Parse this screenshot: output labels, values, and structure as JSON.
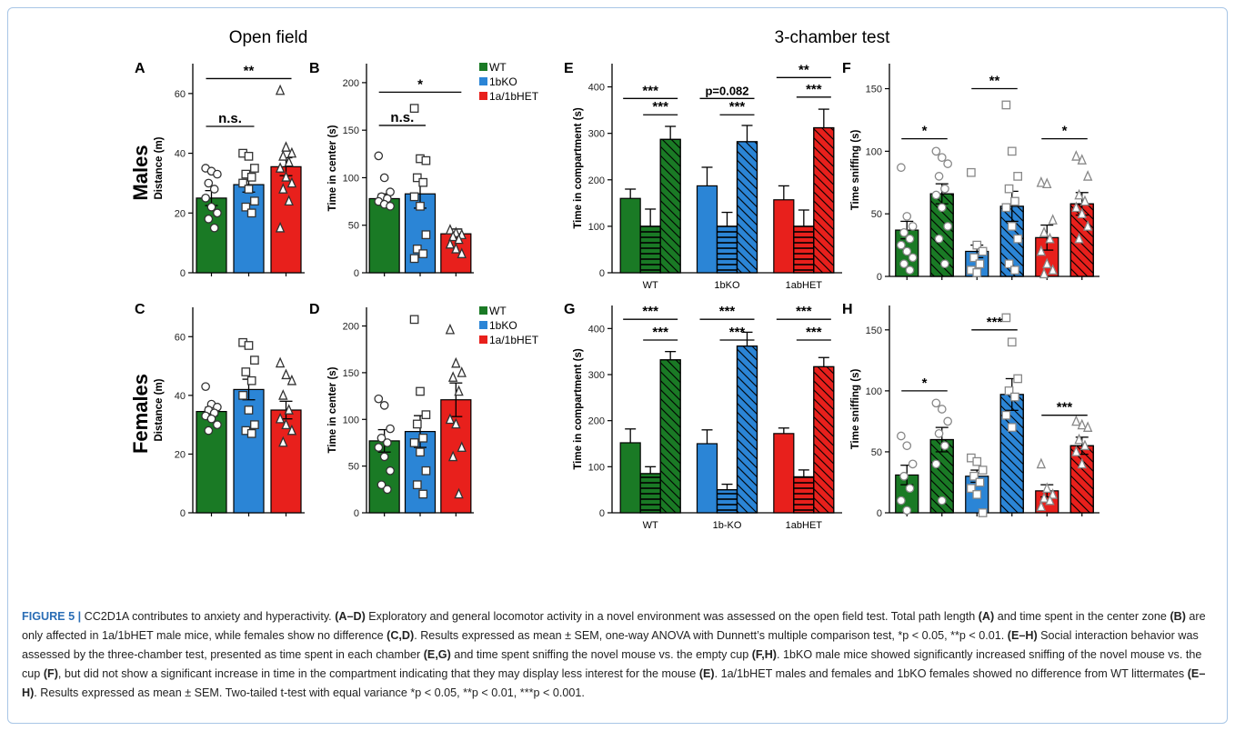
{
  "figure": {
    "group_titles": [
      "Open field",
      "3-chamber test"
    ],
    "row_labels": [
      "Males",
      "Females"
    ],
    "legend": [
      {
        "label": "WT",
        "color": "#1a7a25"
      },
      {
        "label": "1bKO",
        "color": "#2b85d6"
      },
      {
        "label": "1a/1bHET",
        "color": "#e8201c"
      }
    ],
    "colors": {
      "WT": "#1a7a25",
      "1bKO": "#2b85d6",
      "1a/1bHET": "#e8201c"
    }
  },
  "caption": {
    "label": "FIGURE 5 |",
    "parts": [
      {
        "t": " CC2D1A contributes to anxiety and hyperactivity. "
      },
      {
        "t": "(A–D)",
        "b": true
      },
      {
        "t": " Exploratory and general locomotor activity in a novel environment was assessed on the open field test. Total path length "
      },
      {
        "t": "(A)",
        "b": true
      },
      {
        "t": " and time spent in the center zone "
      },
      {
        "t": "(B)",
        "b": true
      },
      {
        "t": " are only affected in 1a/1bHET male mice, while females show no difference "
      },
      {
        "t": "(C,D)",
        "b": true
      },
      {
        "t": ". Results expressed as mean ± SEM, one-way ANOVA with Dunnett’s multiple comparison test, *p < 0.05, **p < 0.01. "
      },
      {
        "t": "(E–H)",
        "b": true
      },
      {
        "t": " Social interaction behavior was assessed by the three-chamber test, presented as time spent in each chamber "
      },
      {
        "t": "(E,G)",
        "b": true
      },
      {
        "t": " and time spent sniffing the novel mouse vs. the empty cup "
      },
      {
        "t": "(F,H)",
        "b": true
      },
      {
        "t": ". 1bKO male mice showed significantly increased sniffing of the novel mouse vs. the cup "
      },
      {
        "t": "(F)",
        "b": true
      },
      {
        "t": ", but did not show a significant increase in time in the compartment indicating that they may display less interest for the mouse "
      },
      {
        "t": "(E)",
        "b": true
      },
      {
        "t": ". 1a/1bHET males and females and 1bKO females showed no difference from WT littermates "
      },
      {
        "t": "(E–H)",
        "b": true
      },
      {
        "t": ". Results expressed as mean ± SEM. Two-tailed t-test with equal variance *p < 0.05, **p < 0.01, ***p < 0.001."
      }
    ]
  },
  "chart_data": [
    {
      "panel": "A",
      "type": "bar",
      "ylabel": "Distance (m)",
      "ylim": [
        0,
        70
      ],
      "yticks": [
        0,
        20,
        40,
        60
      ],
      "categories": [
        "WT",
        "1bKO",
        "1a/1bHET"
      ],
      "values": [
        25,
        29.5,
        35.5
      ],
      "sem": [
        2.5,
        2.5,
        3
      ],
      "points": [
        [
          35,
          34,
          33,
          30,
          28,
          25,
          22,
          20,
          18,
          15
        ],
        [
          40,
          39,
          35,
          33,
          32,
          30,
          28,
          24,
          22,
          20
        ],
        [
          61,
          42,
          40,
          39,
          37,
          35,
          32,
          30,
          28,
          24,
          15
        ]
      ],
      "markers": [
        "circle",
        "square",
        "triangle"
      ],
      "sig": [
        {
          "a": 0,
          "b": 1,
          "label": "n.s.",
          "y": 49
        },
        {
          "a": 0,
          "b": 2,
          "label": "**",
          "y": 65
        }
      ]
    },
    {
      "panel": "B",
      "type": "bar",
      "ylabel": "Time in center (s)",
      "ylim": [
        0,
        220
      ],
      "yticks": [
        0,
        50,
        100,
        150,
        200
      ],
      "categories": [
        "WT",
        "1bKO",
        "1a/1bHET"
      ],
      "values": [
        78,
        83,
        41
      ],
      "sem": [
        5,
        15,
        5
      ],
      "points": [
        [
          123,
          100,
          85,
          80,
          78,
          75,
          72,
          70
        ],
        [
          173,
          120,
          118,
          100,
          95,
          80,
          70,
          40,
          25,
          20,
          15
        ],
        [
          45,
          42,
          40,
          38,
          35,
          30,
          25,
          20
        ]
      ],
      "markers": [
        "circle",
        "square",
        "triangle"
      ],
      "sig": [
        {
          "a": 0,
          "b": 1,
          "label": "n.s.",
          "y": 155
        },
        {
          "a": 0,
          "b": 2,
          "label": "*",
          "y": 190
        }
      ],
      "legend": true
    },
    {
      "panel": "C",
      "type": "bar",
      "ylabel": "Distance (m)",
      "ylim": [
        0,
        70
      ],
      "yticks": [
        0,
        20,
        40,
        60
      ],
      "categories": [
        "WT",
        "1bKO",
        "1a/1bHET"
      ],
      "values": [
        34.5,
        42,
        35
      ],
      "sem": [
        1.5,
        3.5,
        3
      ],
      "points": [
        [
          43,
          37,
          36,
          35,
          34,
          33,
          32,
          30,
          28
        ],
        [
          58,
          57,
          52,
          48,
          45,
          40,
          35,
          30,
          28,
          27
        ],
        [
          51,
          47,
          45,
          40,
          35,
          32,
          30,
          28,
          24
        ]
      ],
      "markers": [
        "circle",
        "square",
        "triangle"
      ],
      "sig": []
    },
    {
      "panel": "D",
      "type": "bar",
      "ylabel": "Time in center (s)",
      "ylim": [
        0,
        220
      ],
      "yticks": [
        0,
        50,
        100,
        150,
        200
      ],
      "categories": [
        "WT",
        "1bKO",
        "1a/1bHET"
      ],
      "values": [
        77,
        87,
        121
      ],
      "sem": [
        12,
        17,
        18
      ],
      "points": [
        [
          122,
          115,
          90,
          80,
          75,
          70,
          60,
          45,
          30,
          25
        ],
        [
          207,
          130,
          105,
          95,
          80,
          75,
          65,
          45,
          30,
          20
        ],
        [
          196,
          160,
          150,
          145,
          130,
          100,
          95,
          70,
          60,
          20
        ]
      ],
      "markers": [
        "circle",
        "square",
        "triangle"
      ],
      "sig": [],
      "legend": true
    },
    {
      "panel": "E",
      "type": "bar",
      "ylabel": "Time in compartment (s)",
      "ylim": [
        0,
        450
      ],
      "yticks": [
        0,
        100,
        200,
        300,
        400
      ],
      "groups": [
        "WT",
        "1bKO",
        "1abHET"
      ],
      "series": [
        {
          "name": "",
          "values": [
            160,
            187,
            157
          ],
          "sem": [
            20,
            40,
            30
          ]
        },
        {
          "name": "",
          "values": [
            100,
            100,
            100
          ],
          "sem": [
            37,
            30,
            35
          ]
        },
        {
          "name": "",
          "values": [
            287,
            282,
            312
          ],
          "sem": [
            28,
            35,
            40
          ]
        }
      ],
      "sig": [
        {
          "g": 0,
          "a": 0,
          "b": 2,
          "label": "***",
          "y": 375
        },
        {
          "g": 0,
          "a": 1,
          "b": 2,
          "label": "***",
          "y": 340
        },
        {
          "g": 1,
          "a": 0,
          "b": 2,
          "label": "p=0.082",
          "y": 375
        },
        {
          "g": 1,
          "a": 1,
          "b": 2,
          "label": "***",
          "y": 340
        },
        {
          "g": 2,
          "a": 0,
          "b": 2,
          "label": "**",
          "y": 420
        },
        {
          "g": 2,
          "a": 1,
          "b": 2,
          "label": "***",
          "y": 378
        }
      ]
    },
    {
      "panel": "F",
      "type": "bar",
      "ylabel": "Time sniffing (s)",
      "ylim": [
        0,
        170
      ],
      "yticks": [
        0,
        50,
        100,
        150
      ],
      "categories": [
        "WT",
        "WT",
        "1bKO",
        "1bKO",
        "1a/1bHET",
        "1a/1bHET"
      ],
      "hatched": [
        false,
        true,
        false,
        true,
        false,
        true
      ],
      "values": [
        37,
        66,
        20,
        56,
        31,
        58
      ],
      "sem": [
        7,
        8,
        5,
        12,
        10,
        9
      ],
      "points": [
        [
          87,
          48,
          40,
          35,
          30,
          25,
          20,
          15,
          10,
          5
        ],
        [
          100,
          95,
          90,
          80,
          70,
          65,
          55,
          40,
          30,
          10
        ],
        [
          83,
          25,
          20,
          15,
          10,
          5,
          3
        ],
        [
          137,
          100,
          80,
          70,
          60,
          55,
          40,
          30,
          10,
          5
        ],
        [
          75,
          74,
          45,
          35,
          30,
          20,
          10,
          5,
          2
        ],
        [
          96,
          93,
          80,
          65,
          60,
          55,
          50,
          40,
          30
        ]
      ],
      "markers": [
        "circle",
        "circle",
        "square",
        "square",
        "triangle",
        "triangle"
      ],
      "sig": [
        {
          "a": 0,
          "b": 1,
          "label": "*",
          "y": 110
        },
        {
          "a": 2,
          "b": 3,
          "label": "**",
          "y": 150
        },
        {
          "a": 4,
          "b": 5,
          "label": "*",
          "y": 110
        }
      ]
    },
    {
      "panel": "G",
      "type": "bar",
      "ylabel": "Time in compartment (s)",
      "ylim": [
        0,
        450
      ],
      "yticks": [
        0,
        100,
        200,
        300,
        400
      ],
      "groups": [
        "WT",
        "1b-KO",
        "1abHET"
      ],
      "series": [
        {
          "name": "",
          "values": [
            152,
            150,
            172
          ],
          "sem": [
            30,
            30,
            12
          ]
        },
        {
          "name": "",
          "values": [
            85,
            50,
            78
          ],
          "sem": [
            15,
            12,
            15
          ]
        },
        {
          "name": "",
          "values": [
            332,
            362,
            317
          ],
          "sem": [
            18,
            30,
            20
          ]
        }
      ],
      "sig": [
        {
          "g": 0,
          "a": 0,
          "b": 2,
          "label": "***",
          "y": 420
        },
        {
          "g": 0,
          "a": 1,
          "b": 2,
          "label": "***",
          "y": 375
        },
        {
          "g": 1,
          "a": 0,
          "b": 2,
          "label": "***",
          "y": 420
        },
        {
          "g": 1,
          "a": 1,
          "b": 2,
          "label": "***",
          "y": 375
        },
        {
          "g": 2,
          "a": 0,
          "b": 2,
          "label": "***",
          "y": 420
        },
        {
          "g": 2,
          "a": 1,
          "b": 2,
          "label": "***",
          "y": 375
        }
      ]
    },
    {
      "panel": "H",
      "type": "bar",
      "ylabel": "Time sniffing (s)",
      "ylim": [
        0,
        170
      ],
      "yticks": [
        0,
        50,
        100,
        150
      ],
      "categories": [
        "WT",
        "WT",
        "1bKO",
        "1bKO",
        "1a/1bHET",
        "1a/1bHET"
      ],
      "hatched": [
        false,
        true,
        false,
        true,
        false,
        true
      ],
      "values": [
        31,
        60,
        30,
        97,
        18,
        55
      ],
      "sem": [
        8,
        10,
        5,
        13,
        5,
        7
      ],
      "points": [
        [
          63,
          55,
          40,
          30,
          20,
          10,
          2
        ],
        [
          90,
          85,
          75,
          65,
          55,
          40,
          10
        ],
        [
          45,
          42,
          35,
          30,
          25,
          20,
          15,
          0
        ],
        [
          160,
          140,
          110,
          100,
          95,
          80,
          70
        ],
        [
          40,
          20,
          15,
          12,
          10,
          5
        ],
        [
          75,
          72,
          70,
          60,
          55,
          50,
          40
        ]
      ],
      "markers": [
        "circle",
        "circle",
        "square",
        "square",
        "triangle",
        "triangle"
      ],
      "sig": [
        {
          "a": 0,
          "b": 1,
          "label": "*",
          "y": 100
        },
        {
          "a": 2,
          "b": 3,
          "label": "***",
          "y": 150
        },
        {
          "a": 4,
          "b": 5,
          "label": "***",
          "y": 80
        }
      ]
    }
  ]
}
